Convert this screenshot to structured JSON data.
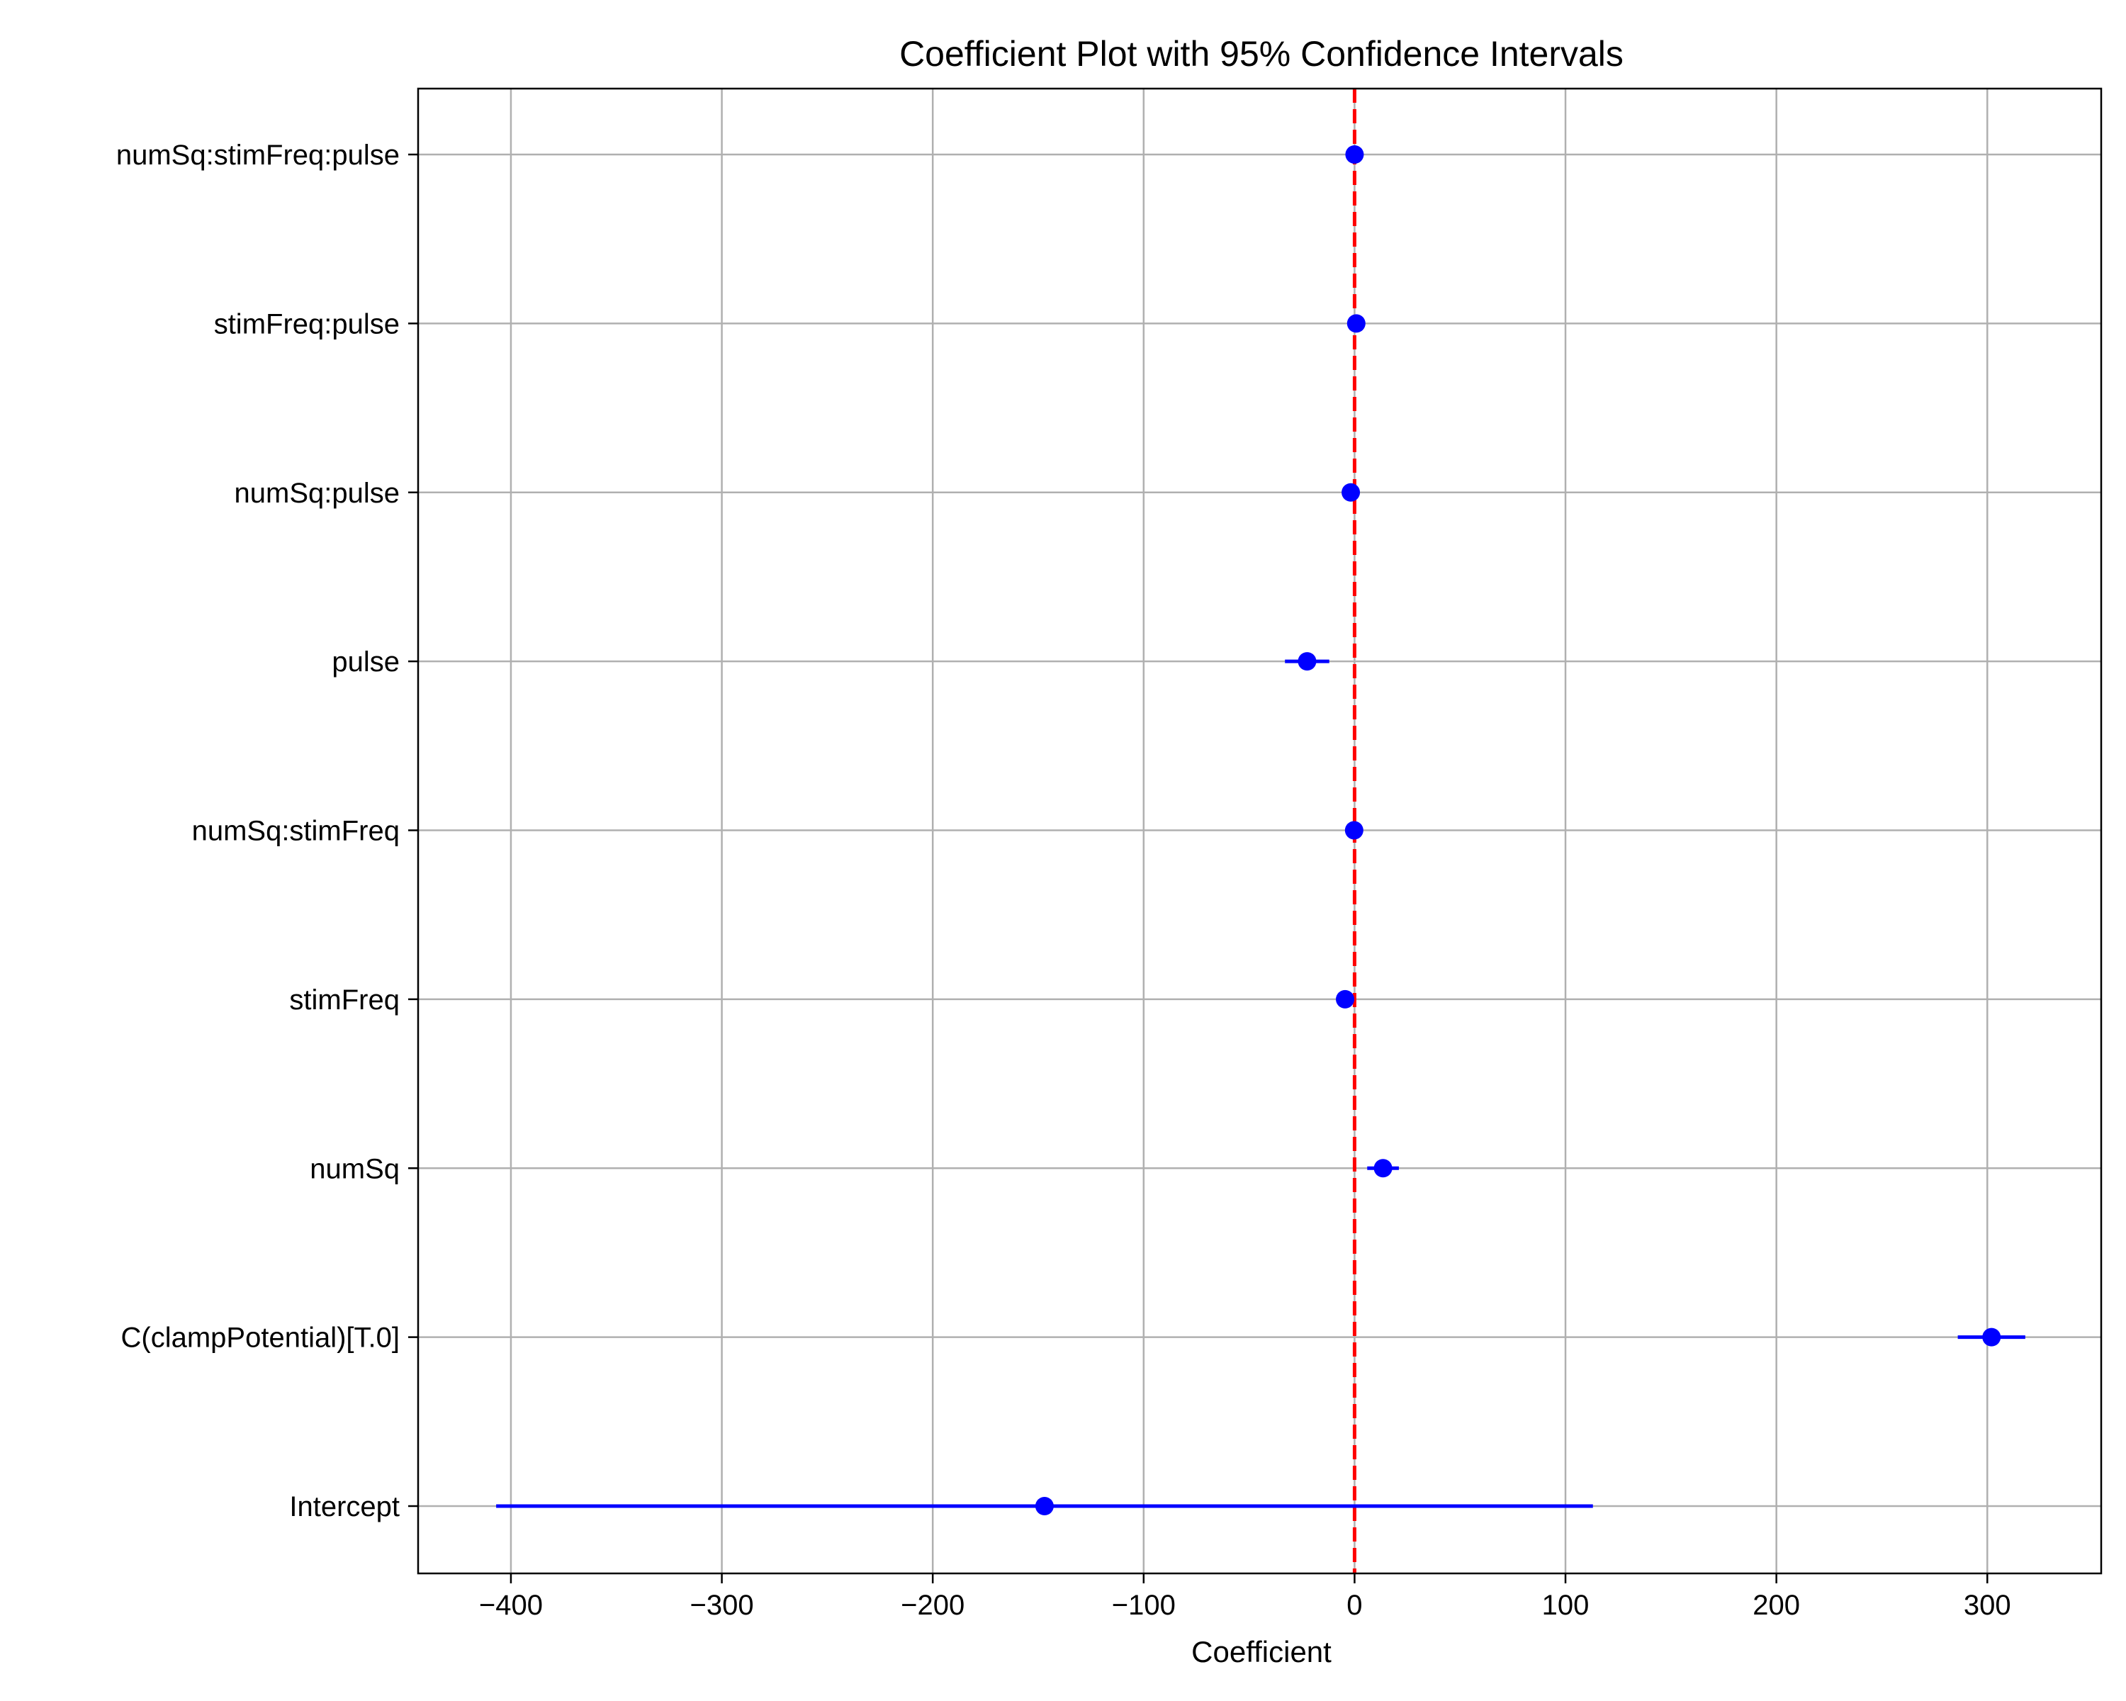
{
  "chart_data": {
    "type": "scatter",
    "title": "Coefficient Plot with 95% Confidence Intervals",
    "xlabel": "Coefficient",
    "ylabel": "",
    "xlim": [
      -444,
      354
    ],
    "xticks": [
      -400,
      -300,
      -200,
      -100,
      0,
      100,
      200,
      300
    ],
    "xtick_labels": [
      "−400",
      "−300",
      "−200",
      "−100",
      "0",
      "100",
      "200",
      "300"
    ],
    "grid": true,
    "reference_line": {
      "x": 0,
      "style": "dashed",
      "color": "#ff0000"
    },
    "point_color": "#0000ff",
    "terms": [
      {
        "name": "numSq:stimFreq:pulse",
        "coef": 0.0,
        "lower": -0.5,
        "upper": 0.5
      },
      {
        "name": "stimFreq:pulse",
        "coef": 0.8,
        "lower": 0.3,
        "upper": 1.3
      },
      {
        "name": "numSq:pulse",
        "coef": -1.8,
        "lower": -2.5,
        "upper": -1.1
      },
      {
        "name": "pulse",
        "coef": -22.5,
        "lower": -33.0,
        "upper": -12.0
      },
      {
        "name": "numSq:stimFreq",
        "coef": -0.2,
        "lower": -0.8,
        "upper": 0.4
      },
      {
        "name": "stimFreq",
        "coef": -4.5,
        "lower": -6.5,
        "upper": -2.5
      },
      {
        "name": "numSq",
        "coef": 13.5,
        "lower": 6.0,
        "upper": 21.0
      },
      {
        "name": "C(clampPotential)[T.0]",
        "coef": 302.0,
        "lower": 286.0,
        "upper": 318.0
      },
      {
        "name": "Intercept",
        "coef": -147.0,
        "lower": -407.0,
        "upper": 113.0
      }
    ]
  }
}
